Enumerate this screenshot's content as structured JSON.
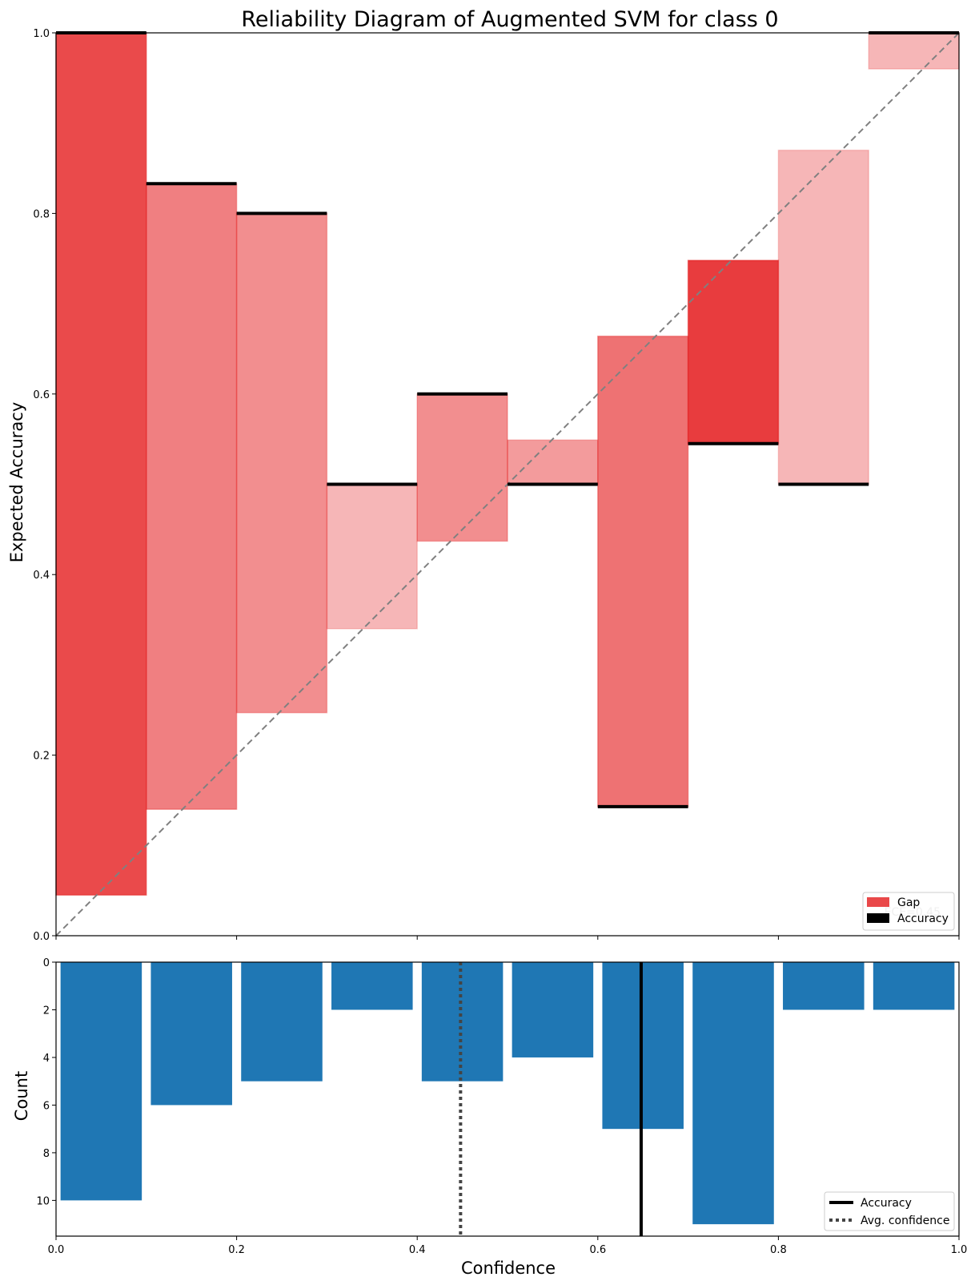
{
  "chart_data": [
    {
      "type": "bar",
      "title": "Reliability Diagram of Augmented SVM for class 0",
      "ylabel": "Expected Accuracy",
      "xlim": [
        0,
        1
      ],
      "ylim": [
        0,
        1
      ],
      "yticks": [
        "0.0",
        "0.2",
        "0.4",
        "0.6",
        "0.8",
        "1.0"
      ],
      "bin_edges": [
        0,
        0.1,
        0.2,
        0.3,
        0.4,
        0.5,
        0.6,
        0.7,
        0.8,
        0.9,
        1.0
      ],
      "accuracy": [
        1.0,
        0.833,
        0.8,
        0.5,
        0.6,
        0.5,
        0.143,
        0.545,
        0.5,
        1.0
      ],
      "confidence": [
        0.045,
        0.14,
        0.247,
        0.34,
        0.437,
        0.549,
        0.664,
        0.748,
        0.87,
        0.96
      ],
      "gap_color": "#e41a1c",
      "accuracy_color": "#000000",
      "diagonal_color": "#808080",
      "legend": {
        "position": "lower-right",
        "entries": [
          "Gap",
          "Accuracy"
        ]
      },
      "annotation": "ECE=0.45"
    },
    {
      "type": "bar",
      "xlabel": "Confidence",
      "ylabel": "Count",
      "xlim": [
        0,
        1
      ],
      "ylim": [
        11.5,
        0
      ],
      "xticks": [
        "0.0",
        "0.2",
        "0.4",
        "0.6",
        "0.8",
        "1.0"
      ],
      "yticks": [
        "0",
        "2",
        "4",
        "6",
        "8",
        "10"
      ],
      "counts": [
        10,
        6,
        5,
        2,
        5,
        4,
        7,
        11,
        2,
        2
      ],
      "bar_color": "#1f77b4",
      "accuracy_line": 0.648,
      "avg_confidence_line": 0.448,
      "legend": {
        "position": "lower-right",
        "entries": [
          "Accuracy",
          "Avg. confidence"
        ]
      }
    }
  ]
}
